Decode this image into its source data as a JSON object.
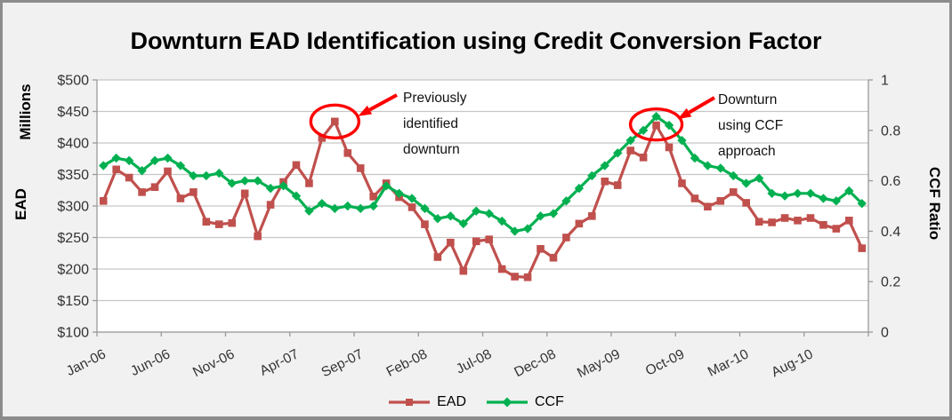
{
  "title": "Downturn EAD Identification using Credit Conversion Factor",
  "legend": {
    "ead_label": "EAD",
    "ccf_label": "CCF"
  },
  "chart_data": {
    "type": "line",
    "title": "Downturn EAD Identification using Credit Conversion Factor",
    "x": [
      "Jan-06",
      "Feb-06",
      "Mar-06",
      "Apr-06",
      "May-06",
      "Jun-06",
      "Jul-06",
      "Aug-06",
      "Sep-06",
      "Oct-06",
      "Nov-06",
      "Dec-06",
      "Jan-07",
      "Feb-07",
      "Mar-07",
      "Apr-07",
      "May-07",
      "Jun-07",
      "Jul-07",
      "Aug-07",
      "Sep-07",
      "Oct-07",
      "Nov-07",
      "Dec-07",
      "Jan-08",
      "Feb-08",
      "Mar-08",
      "Apr-08",
      "May-08",
      "Jun-08",
      "Jul-08",
      "Aug-08",
      "Sep-08",
      "Oct-08",
      "Nov-08",
      "Dec-08",
      "Jan-09",
      "Feb-09",
      "Mar-09",
      "Apr-09",
      "May-09",
      "Jun-09",
      "Jul-09",
      "Aug-09",
      "Sep-09",
      "Oct-09",
      "Nov-09",
      "Dec-09",
      "Jan-10",
      "Feb-10",
      "Mar-10",
      "Apr-10",
      "May-10",
      "Jun-10",
      "Jul-10",
      "Aug-10",
      "Sep-10",
      "Oct-10",
      "Nov-10",
      "Dec-10"
    ],
    "x_tick_labels": [
      "Jan-06",
      "Jun-06",
      "Nov-06",
      "Apr-07",
      "Sep-07",
      "Feb-08",
      "Jul-08",
      "Dec-08",
      "May-09",
      "Oct-09",
      "Mar-10",
      "Aug-10"
    ],
    "series": [
      {
        "name": "EAD",
        "axis": "left",
        "units": "USD millions",
        "color": "#C0504D",
        "marker": "square",
        "values": [
          308,
          358,
          345,
          322,
          330,
          355,
          312,
          322,
          275,
          271,
          273,
          320,
          252,
          302,
          338,
          365,
          336,
          408,
          434,
          384,
          360,
          315,
          336,
          314,
          298,
          271,
          219,
          242,
          197,
          244,
          247,
          200,
          188,
          187,
          232,
          218,
          250,
          272,
          284,
          339,
          333,
          388,
          377,
          428,
          393,
          336,
          312,
          299,
          308,
          322,
          305,
          275,
          274,
          281,
          277,
          281,
          270,
          264,
          277,
          233
        ]
      },
      {
        "name": "CCF",
        "axis": "right",
        "units": "ratio",
        "color": "#00B050",
        "marker": "diamond",
        "values": [
          0.66,
          0.69,
          0.68,
          0.64,
          0.68,
          0.69,
          0.66,
          0.62,
          0.62,
          0.63,
          0.59,
          0.6,
          0.6,
          0.57,
          0.58,
          0.54,
          0.48,
          0.51,
          0.49,
          0.5,
          0.49,
          0.5,
          0.58,
          0.55,
          0.53,
          0.49,
          0.45,
          0.46,
          0.43,
          0.48,
          0.47,
          0.44,
          0.4,
          0.41,
          0.46,
          0.47,
          0.52,
          0.57,
          0.62,
          0.66,
          0.71,
          0.76,
          0.8,
          0.855,
          0.82,
          0.76,
          0.69,
          0.66,
          0.65,
          0.62,
          0.59,
          0.61,
          0.55,
          0.54,
          0.55,
          0.55,
          0.53,
          0.52,
          0.56,
          0.51
        ]
      }
    ],
    "y_left": {
      "titles": [
        "Millions",
        "EAD"
      ],
      "min": 100,
      "max": 500,
      "tick_step": 50,
      "tick_labels": [
        "$100",
        "$150",
        "$200",
        "$250",
        "$300",
        "$350",
        "$400",
        "$450",
        "$500"
      ]
    },
    "y_right": {
      "title": "CCF Ratio",
      "min": 0,
      "max": 1,
      "tick_step": 0.2,
      "tick_labels": [
        "0",
        "0.2",
        "0.4",
        "0.6",
        "0.8",
        "1"
      ]
    },
    "grid": "horizontal",
    "legend_position": "bottom-center",
    "annotations": [
      {
        "lines": [
          "Previously",
          "identified",
          "downturn"
        ],
        "circles_series": "EAD",
        "at_x": "Jul-07",
        "point_index": 18,
        "circled_value": 434
      },
      {
        "lines": [
          "Downturn",
          "using CCF",
          "approach"
        ],
        "circles_series": "CCF",
        "at_x": "Aug-09",
        "point_index": 43,
        "circled_value": 0.855
      }
    ],
    "colors": {
      "ead_series": "#C0504D",
      "ccf_series": "#00B050",
      "annotation_red": "#FF0000",
      "gridline": "#C6C6C6",
      "axis_line": "#9A9A9A",
      "tick_text": "#333333",
      "background": "#F1F1F1",
      "plot_background": "#FFFFFF",
      "frame_border": "#8C8C8C"
    }
  }
}
